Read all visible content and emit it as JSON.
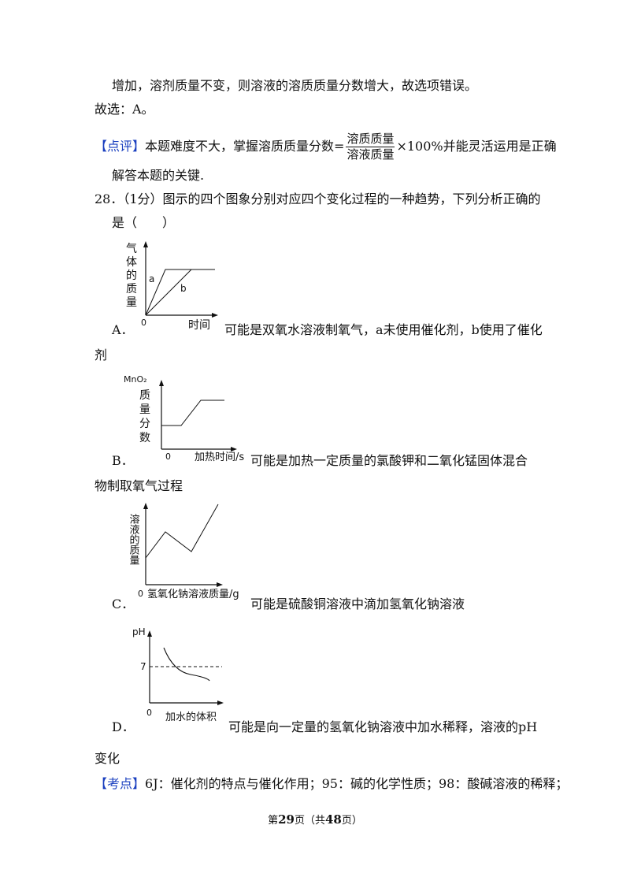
{
  "solution": {
    "line1": "增加，溶剂质量不变，则溶液的溶质质量分数增大，故选项错误。",
    "answer": "故选：A。",
    "comment_tag": "【点评】",
    "comment_pre": "本题难度不大，掌握溶质质量分数=",
    "frac_num": "溶质质量",
    "frac_den": "溶液质量",
    "comment_post": "×100%并能灵活运用是正确",
    "comment_line2": "解答本题的关键."
  },
  "question": {
    "stem_line1": "28．（1分）图示的四个图象分别对应四个变化过程的一种趋势，下列分析正确的",
    "stem_line2": "是（　　）"
  },
  "options": {
    "a": {
      "letter": "A．",
      "text1": "可能是双氧水溶液制氧气，a未使用催化剂，b使用了催化",
      "text2": "剂",
      "chart": {
        "ylabel": [
          "气",
          "体",
          "的",
          "质",
          "量"
        ],
        "xlabel": "时间",
        "origin": "0",
        "label_a": "a",
        "label_b": "b"
      }
    },
    "b": {
      "letter": "B．",
      "text1": "可能是加热一定质量的氯酸钾和二氧化锰固体混合",
      "text2": "物制取氧气过程",
      "chart": {
        "ytitle": "MnO₂",
        "ylabel": [
          "质",
          "量",
          "分",
          "数"
        ],
        "xlabel": "加热时间/s",
        "origin": "0"
      }
    },
    "c": {
      "letter": "C．",
      "text1": "可能是硫酸铜溶液中滴加氢氧化钠溶液",
      "chart": {
        "ylabel": "溶液的质量",
        "xlabel": "氢氧化钠溶液质量/g",
        "origin": "0"
      }
    },
    "d": {
      "letter": "D．",
      "text1": "可能是向一定量的氢氧化钠溶液中加水稀释，溶液的pH",
      "text2": "变化",
      "chart": {
        "ylabel": "pH",
        "y_mark": "7",
        "xlabel": "加水的体积",
        "origin": "0"
      }
    }
  },
  "kaodian": {
    "tag": "【考点】",
    "text": "6J：催化剂的特点与催化作用；95：碱的化学性质；98：酸碱溶液的稀释；"
  },
  "footer": {
    "pre": "第",
    "page": "29",
    "mid": "页（共",
    "total": "48",
    "post": "页）"
  },
  "colors": {
    "tag_blue": "#1a3fbf",
    "text": "#111111"
  }
}
